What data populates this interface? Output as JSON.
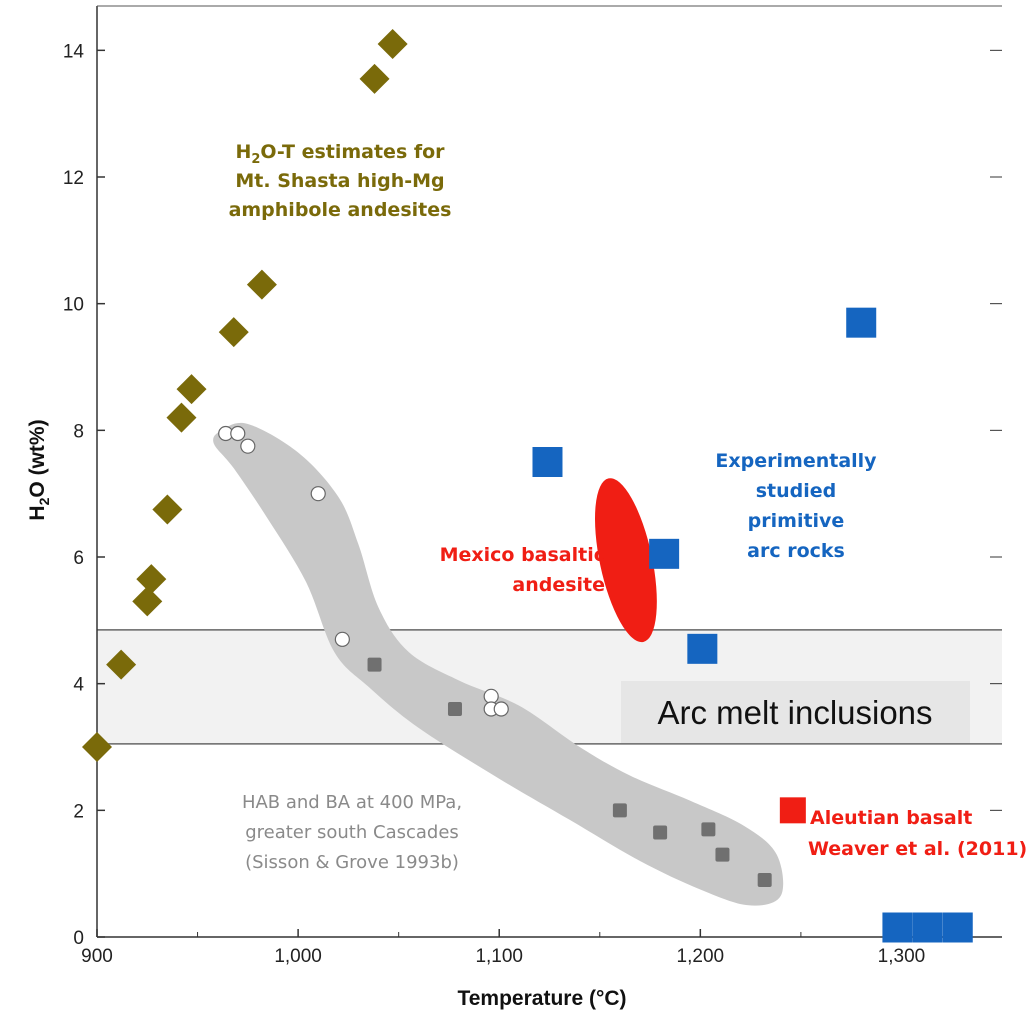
{
  "chart_data": {
    "type": "scatter",
    "xlabel": "Temperature (°C)",
    "ylabel_main": "H",
    "ylabel_sub": "2",
    "ylabel_rest": "O (wt%)",
    "xlim": [
      900,
      1350
    ],
    "ylim": [
      0,
      14.7
    ],
    "x_ticks": [
      900,
      1000,
      1100,
      1200,
      1300
    ],
    "x_tick_labels": [
      "900",
      "1,000",
      "1,100",
      "1,200",
      "1,300"
    ],
    "y_ticks": [
      0,
      2,
      4,
      6,
      8,
      10,
      12,
      14
    ],
    "y_tick_labels": [
      "0",
      "2",
      "4",
      "6",
      "8",
      "10",
      "12",
      "14"
    ],
    "colors": {
      "shasta": "#7a6a0a",
      "experimental": "#1565c0",
      "mexico": "#f01e14",
      "aleutian": "#f01e14",
      "cascades_field": "#c8c8c8",
      "band": "#f2f2f2",
      "open_circle": "#ffffff",
      "dark_square": "#707070"
    },
    "series": [
      {
        "name": "H2O-T estimates for Mt. Shasta high-Mg amphibole andesites",
        "marker": "diamond",
        "points": [
          [
            900,
            3.0
          ],
          [
            912,
            4.3
          ],
          [
            927,
            5.65
          ],
          [
            925,
            5.3
          ],
          [
            935,
            6.75
          ],
          [
            942,
            8.2
          ],
          [
            947,
            8.65
          ],
          [
            968,
            9.55
          ],
          [
            982,
            10.3
          ],
          [
            1038,
            13.55
          ],
          [
            1047,
            14.1
          ]
        ]
      },
      {
        "name": "Experimentally studied primitive arc rocks",
        "marker": "square",
        "points": [
          [
            1124,
            7.5
          ],
          [
            1182,
            6.05
          ],
          [
            1201,
            4.55
          ],
          [
            1280,
            9.7
          ],
          [
            1298,
            0.15
          ],
          [
            1313,
            0.15
          ],
          [
            1328,
            0.15
          ]
        ]
      },
      {
        "name": "Aleutian basalt Weaver et al. (2011)",
        "marker": "square",
        "points": [
          [
            1246,
            2.0
          ]
        ]
      },
      {
        "name": "HAB and BA at 400 MPa, greater south Cascades (Sisson & Grove 1993b) - open",
        "marker": "circle-open",
        "points": [
          [
            964,
            7.95
          ],
          [
            970,
            7.95
          ],
          [
            975,
            7.75
          ],
          [
            1010,
            7.0
          ],
          [
            1022,
            4.7
          ],
          [
            1096,
            3.8
          ],
          [
            1096,
            3.6
          ],
          [
            1101,
            3.6
          ]
        ]
      },
      {
        "name": "HAB and BA at 400 MPa, greater south Cascades (Sisson & Grove 1993b) - filled",
        "marker": "square-small",
        "points": [
          [
            1038,
            4.3
          ],
          [
            1078,
            3.6
          ],
          [
            1160,
            2.0
          ],
          [
            1180,
            1.65
          ],
          [
            1204,
            1.7
          ],
          [
            1211,
            1.3
          ],
          [
            1232,
            0.9
          ]
        ]
      }
    ],
    "mexico_ellipse": {
      "cx": 1163,
      "cy": 5.95,
      "rx": 13,
      "ry": 1.32,
      "rotate": -12
    },
    "band": {
      "y_low": 3.05,
      "y_high": 4.85
    },
    "cascades_region": [
      [
        962,
        8.0
      ],
      [
        975,
        8.1
      ],
      [
        1000,
        7.65
      ],
      [
        1020,
        6.95
      ],
      [
        1030,
        6.2
      ],
      [
        1040,
        5.2
      ],
      [
        1055,
        4.5
      ],
      [
        1080,
        4.05
      ],
      [
        1110,
        3.65
      ],
      [
        1140,
        3.0
      ],
      [
        1165,
        2.55
      ],
      [
        1195,
        2.15
      ],
      [
        1222,
        1.75
      ],
      [
        1238,
        1.3
      ],
      [
        1240,
        0.65
      ],
      [
        1224,
        0.5
      ],
      [
        1200,
        0.75
      ],
      [
        1170,
        1.2
      ],
      [
        1135,
        1.85
      ],
      [
        1100,
        2.5
      ],
      [
        1060,
        3.3
      ],
      [
        1035,
        3.95
      ],
      [
        1018,
        4.5
      ],
      [
        1004,
        5.6
      ],
      [
        985,
        6.6
      ],
      [
        968,
        7.4
      ],
      [
        958,
        7.8
      ]
    ],
    "annotations": {
      "shasta_line1_pre": "H",
      "shasta_line1_sub": "2",
      "shasta_line1_post": "O-T estimates for",
      "shasta_line2": "Mt. Shasta high-Mg",
      "shasta_line3": "amphibole andesites",
      "experimental_line1": "Experimentally",
      "experimental_line2": "studied",
      "experimental_line3": "primitive",
      "experimental_line4": "arc rocks",
      "mexico_line1": "Mexico basaltic",
      "mexico_line2": "andesite",
      "cascades_line1": "HAB and BA at 400 MPa,",
      "cascades_line2": "greater south Cascades",
      "cascades_line3": "(Sisson & Grove 1993b)",
      "aleutian_line1": "Aleutian basalt",
      "aleutian_line2": "Weaver et al. (2011)",
      "callout": "Arc melt inclusions"
    }
  }
}
